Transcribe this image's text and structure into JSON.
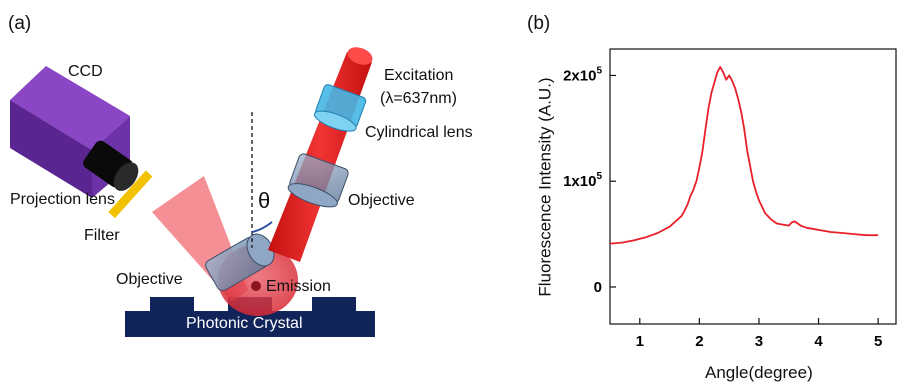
{
  "figure": {
    "panel_a_label": "(a)",
    "panel_b_label": "(b)"
  },
  "schematic": {
    "ccd": "CCD",
    "projection_lens": "Projection lens",
    "filter": "Filter",
    "objective_left": "Objective",
    "emission": "Emission",
    "photonic_crystal": "Photonic Crystal",
    "theta": "θ",
    "objective_right": "Objective",
    "cylindrical_lens": "Cylindrical lens",
    "excitation_line1": "Excitation",
    "excitation_line2": "(λ=637nm)",
    "colors": {
      "ccd": "#6a2e9c",
      "lens_black": "#0a0a0a",
      "filter": "#f2c200",
      "objective": "#7f97b5",
      "cylindrical_lens": "#45b7e6",
      "beam": "#e01c1c",
      "emission": "#e8505a",
      "crystal": "#11245a"
    }
  },
  "chart_data": {
    "type": "line",
    "xlabel": "Angle(degree)",
    "ylabel": "Fluorescence Intensity (A.U.)",
    "xlim": [
      0.5,
      5.3
    ],
    "ylim": [
      -35000,
      225000
    ],
    "xticks": [
      1,
      2,
      3,
      4,
      5
    ],
    "yticks": [
      {
        "value": 0,
        "label": "0"
      },
      {
        "value": 100000,
        "label": "1x10",
        "sup": "5"
      },
      {
        "value": 200000,
        "label": "2x10",
        "sup": "5"
      }
    ],
    "grid": false,
    "color": "#e8202a",
    "x": [
      0.5,
      0.7,
      0.9,
      1.1,
      1.3,
      1.5,
      1.6,
      1.7,
      1.75,
      1.8,
      1.85,
      1.9,
      1.95,
      2.0,
      2.05,
      2.1,
      2.15,
      2.2,
      2.25,
      2.3,
      2.35,
      2.4,
      2.45,
      2.5,
      2.55,
      2.6,
      2.65,
      2.7,
      2.75,
      2.8,
      2.85,
      2.9,
      2.95,
      3.0,
      3.1,
      3.2,
      3.3,
      3.4,
      3.5,
      3.55,
      3.6,
      3.65,
      3.7,
      3.8,
      3.9,
      4.0,
      4.2,
      4.4,
      4.6,
      4.8,
      5.0
    ],
    "y": [
      41000,
      42000,
      44000,
      47000,
      51000,
      57000,
      62000,
      67000,
      72000,
      78000,
      86000,
      92000,
      100000,
      113000,
      128000,
      148000,
      168000,
      183000,
      193000,
      203000,
      208000,
      203000,
      196000,
      200000,
      195000,
      188000,
      178000,
      166000,
      150000,
      130000,
      115000,
      100000,
      90000,
      82000,
      70000,
      64000,
      60000,
      59000,
      58000,
      61000,
      62000,
      60000,
      58000,
      56000,
      55000,
      54000,
      52000,
      51000,
      50000,
      49000,
      49000
    ]
  }
}
